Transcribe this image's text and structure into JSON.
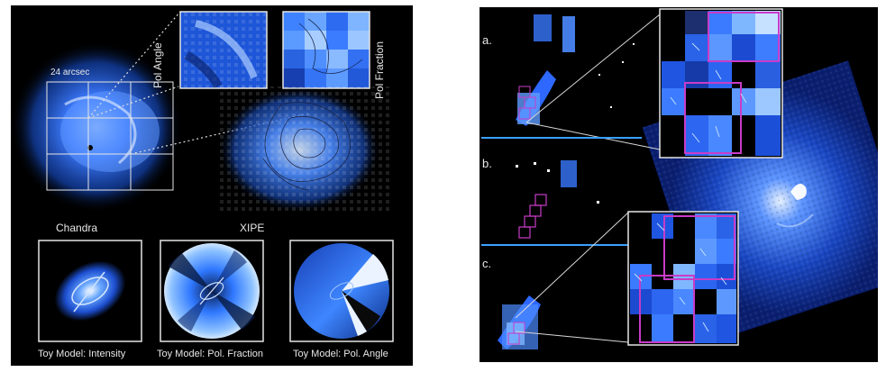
{
  "left_panel": {
    "scale_label": "24 arcsec",
    "pol_angle_label": "Pol Angle",
    "pol_fraction_label": "Pol Fraction",
    "chandra_label": "Chandra",
    "xipe_label": "XIPE",
    "toy_intensity_label": "Toy Model: Intensity",
    "toy_fraction_label": "Toy Model: Pol. Fraction",
    "toy_angle_label": "Toy Model: Pol. Angle"
  },
  "right_panel": {
    "label_a": "a.",
    "label_b": "b.",
    "label_c": "c."
  },
  "colors": {
    "background": "#000000",
    "blue_emission": "#2f6dff",
    "bright_core": "#cfe3ff",
    "frame": "#e6e6e6",
    "magenta_box": "#c83cc8",
    "divider_line": "#3aa0ff"
  }
}
